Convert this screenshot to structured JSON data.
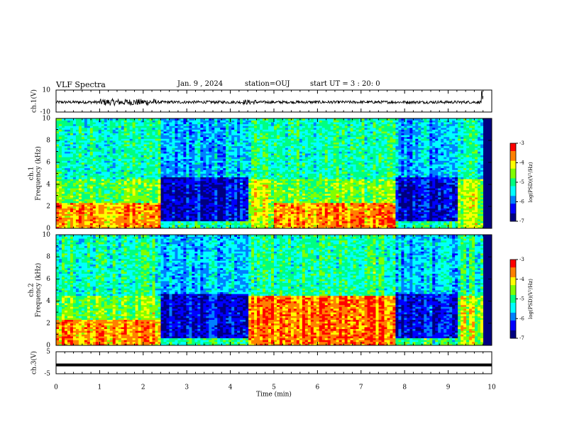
{
  "header": {
    "title": "VLF Spectra",
    "date": "Jan. 9 , 2024",
    "station": "station=OUJ",
    "start_ut": "start UT = 3 : 20: 0"
  },
  "colors": {
    "background": "#ffffff",
    "axis": "#000000",
    "trace": "#000000",
    "colormap": [
      "#000080",
      "#0000ff",
      "#0080ff",
      "#00ffff",
      "#00ff80",
      "#80ff00",
      "#ffff00",
      "#ff8000",
      "#ff0000",
      "#ffffff"
    ]
  },
  "chart_data": [
    {
      "type": "line",
      "panel": "ch1-waveform",
      "ylabel": "ch.1(V)",
      "ylim": [
        -10,
        10
      ],
      "yticks": [
        "10",
        "-10"
      ],
      "xlim": [
        0,
        10
      ],
      "description_level": "noisy waveform centred near -1 V with bursts around 1.0-2.2 min and a spike at ~9.8 min"
    },
    {
      "type": "heatmap",
      "panel": "ch1-spectrogram",
      "ylabel": "ch.1",
      "ylabel2": "Frequency (kHz)",
      "ylim": [
        0,
        10
      ],
      "yticks": [
        "0",
        "2",
        "4",
        "6",
        "8",
        "10"
      ],
      "xlim": [
        0,
        10
      ],
      "colorbar": {
        "label": "log(PSD)(V²/Hz)",
        "range": [
          -7,
          -3
        ],
        "ticks": [
          "-3",
          "-4",
          "-5",
          "-6",
          "-7"
        ]
      },
      "segments": [
        {
          "start_min": 0.0,
          "end_min": 2.4,
          "state": "active",
          "band_top_khz": 4.5
        },
        {
          "start_min": 2.4,
          "end_min": 4.4,
          "state": "quiet"
        },
        {
          "start_min": 4.4,
          "end_min": 5.0,
          "state": "partial",
          "band_top_khz": 4.5
        },
        {
          "start_min": 5.0,
          "end_min": 7.8,
          "state": "active",
          "band_top_khz": 4.5
        },
        {
          "start_min": 7.8,
          "end_min": 9.2,
          "state": "quiet"
        },
        {
          "start_min": 9.2,
          "end_min": 9.8,
          "state": "partial",
          "band_top_khz": 4.5
        }
      ]
    },
    {
      "type": "heatmap",
      "panel": "ch2-spectrogram",
      "ylabel": "ch.2",
      "ylabel2": "Frequency (kHz)",
      "ylim": [
        0,
        10
      ],
      "yticks": [
        "0",
        "2",
        "4",
        "6",
        "8",
        "10"
      ],
      "xlim": [
        0,
        10
      ],
      "colorbar": {
        "label": "log(PSD)(V²/Hz)",
        "range": [
          -7,
          -3
        ],
        "ticks": [
          "-3",
          "-4",
          "-5",
          "-6",
          "-7"
        ]
      },
      "segments": [
        {
          "start_min": 0.0,
          "end_min": 2.4,
          "state": "active",
          "band_top_khz": 4.5
        },
        {
          "start_min": 2.4,
          "end_min": 4.4,
          "state": "quiet"
        },
        {
          "start_min": 4.4,
          "end_min": 7.8,
          "state": "strong",
          "band_top_khz": 4.5
        },
        {
          "start_min": 7.8,
          "end_min": 9.2,
          "state": "quiet"
        },
        {
          "start_min": 9.2,
          "end_min": 9.8,
          "state": "partial",
          "band_top_khz": 4.5
        }
      ]
    },
    {
      "type": "line",
      "panel": "ch3-trace",
      "ylabel": "ch.3(V)",
      "ylim": [
        -5,
        5
      ],
      "yticks": [
        "5",
        "-5"
      ],
      "xlim": [
        0,
        10
      ],
      "value": -1,
      "xlabel": "Time (min)",
      "xticks": [
        "0",
        "1",
        "2",
        "3",
        "4",
        "5",
        "6",
        "7",
        "8",
        "9",
        "10"
      ]
    }
  ]
}
